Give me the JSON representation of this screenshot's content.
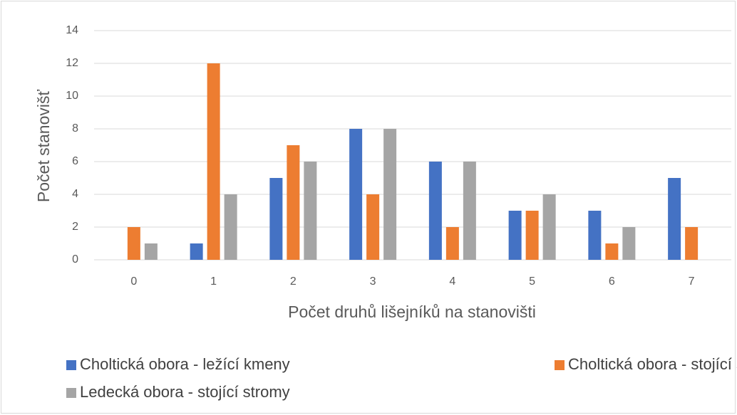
{
  "chart_data": {
    "type": "bar",
    "xlabel": "Počet druhů lišejníků na stanovišti",
    "ylabel": "Počet stanovišť",
    "categories": [
      "0",
      "1",
      "2",
      "3",
      "4",
      "5",
      "6",
      "7"
    ],
    "series": [
      {
        "name": "Choltická obora - ležící kmeny",
        "color": "#4472c4",
        "values": [
          0,
          1,
          5,
          8,
          6,
          3,
          3,
          5
        ]
      },
      {
        "name": "Choltická obora - stojící stromy",
        "color": "#ed7d31",
        "values": [
          2,
          12,
          7,
          4,
          2,
          3,
          1,
          2
        ]
      },
      {
        "name": "Ledecká obora - stojící stromy",
        "color": "#a5a5a5",
        "values": [
          1,
          4,
          6,
          8,
          6,
          4,
          2,
          0
        ]
      }
    ],
    "ylim": [
      0,
      14
    ],
    "yticks": [
      0,
      2,
      4,
      6,
      8,
      10,
      12,
      14
    ],
    "grid": true,
    "legend": "bottom"
  }
}
